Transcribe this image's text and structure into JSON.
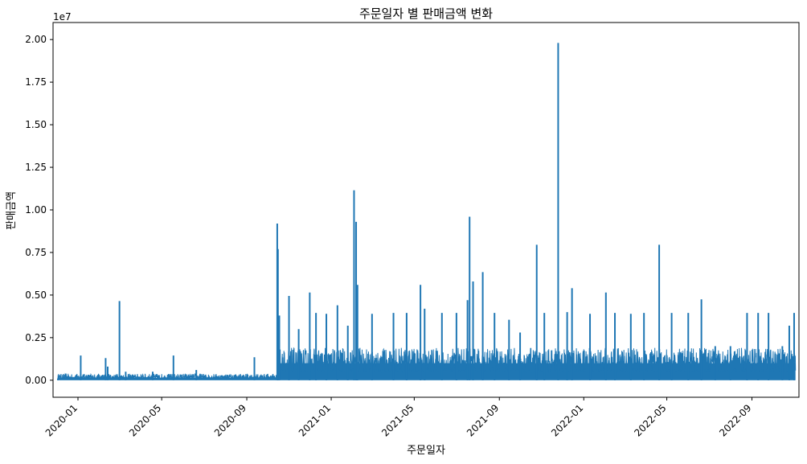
{
  "chart_data": {
    "type": "line",
    "title": "주문일자 별 판매금액 변화",
    "xlabel": "주문일자",
    "ylabel": "판매금액",
    "y_multiplier_label": "1e7",
    "x_range": [
      "2019-11-26",
      "2022-11-08"
    ],
    "ylim": [
      -1000000,
      21000000
    ],
    "y_ticks": [
      0,
      2500000,
      5000000,
      7500000,
      10000000,
      12500000,
      15000000,
      17500000,
      20000000
    ],
    "y_tick_labels": [
      "0.00",
      "0.25",
      "0.50",
      "0.75",
      "1.00",
      "1.25",
      "1.50",
      "1.75",
      "2.00"
    ],
    "x_ticks": [
      "2020-01-01",
      "2020-05-01",
      "2020-09-01",
      "2021-01-01",
      "2021-05-01",
      "2021-09-01",
      "2022-01-01",
      "2022-05-01",
      "2022-09-01"
    ],
    "x_tick_labels": [
      "2020-01",
      "2020-05",
      "2020-09",
      "2021-01",
      "2021-05",
      "2021-09",
      "2022-01",
      "2022-05",
      "2022-09"
    ],
    "grid": false,
    "legend": "none",
    "line_color": "#1f77b4",
    "series": [
      {
        "x": [
          "2019-12-03",
          "2020-01-05",
          "2020-02-10",
          "2020-02-13",
          "2020-03-01",
          "2020-03-10",
          "2020-04-18",
          "2020-05-18",
          "2020-06-20",
          "2020-09-12",
          "2020-10-15",
          "2020-10-16",
          "2020-10-18",
          "2020-11-01",
          "2020-11-15",
          "2020-12-01",
          "2020-12-10",
          "2020-12-25",
          "2021-01-10",
          "2021-01-25",
          "2021-02-03",
          "2021-02-06",
          "2021-02-08",
          "2021-03-01",
          "2021-04-01",
          "2021-04-20",
          "2021-05-10",
          "2021-05-16",
          "2021-06-10",
          "2021-07-01",
          "2021-07-17",
          "2021-07-20",
          "2021-07-25",
          "2021-08-08",
          "2021-08-25",
          "2021-09-15",
          "2021-10-01",
          "2021-10-25",
          "2021-11-05",
          "2021-11-25",
          "2021-12-08",
          "2021-12-15",
          "2022-01-10",
          "2022-02-02",
          "2022-02-15",
          "2022-03-10",
          "2022-03-29",
          "2022-04-20",
          "2022-05-08",
          "2022-06-01",
          "2022-06-20",
          "2022-07-10",
          "2022-08-01",
          "2022-08-25",
          "2022-09-10",
          "2022-09-25",
          "2022-10-15",
          "2022-10-25",
          "2022-11-01"
        ],
        "y": [
          100000,
          1450000,
          1300000,
          800000,
          4650000,
          500000,
          500000,
          1450000,
          600000,
          1350000,
          9200000,
          7700000,
          3800000,
          4950000,
          3000000,
          5150000,
          3950000,
          3900000,
          4400000,
          3200000,
          11150000,
          9300000,
          5600000,
          3900000,
          3950000,
          3950000,
          5600000,
          4200000,
          3950000,
          3950000,
          4700000,
          9600000,
          5800000,
          6350000,
          3950000,
          3550000,
          2800000,
          7950000,
          3950000,
          19800000,
          4000000,
          5400000,
          3900000,
          5150000,
          3950000,
          3900000,
          3950000,
          7950000,
          3950000,
          3950000,
          4750000,
          2000000,
          2000000,
          3950000,
          3950000,
          3950000,
          2000000,
          3200000,
          3950000
        ]
      }
    ]
  }
}
